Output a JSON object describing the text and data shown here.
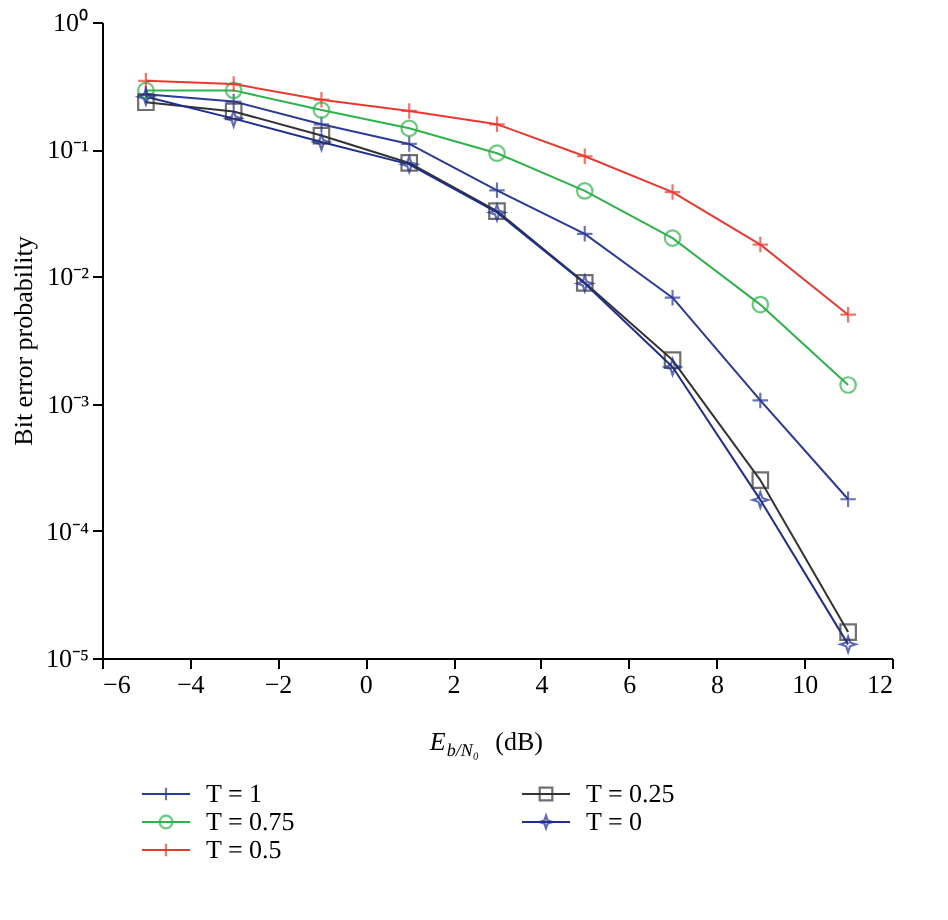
{
  "chart_data": {
    "type": "line",
    "xlabel": "E$_{b/N₀}$ (dB)",
    "ylabel": "Bit error probability",
    "x": [
      -5,
      -3,
      -1,
      1,
      3,
      5,
      7,
      9,
      11
    ],
    "series": [
      {
        "name": "T = 1",
        "color": "#2b3a96",
        "marker": "cross",
        "values": [
          0.27,
          0.237,
          0.157,
          0.11,
          0.0475,
          0.0216,
          0.0068,
          0.00106,
          0.000177
        ]
      },
      {
        "name": "T = 0.75",
        "color": "#2db34a",
        "marker": "circle",
        "values": [
          0.29,
          0.29,
          0.203,
          0.146,
          0.093,
          0.047,
          0.02,
          0.006,
          0.0014
        ]
      },
      {
        "name": "T = 0.5",
        "color": "#e8392f",
        "marker": "cross",
        "values": [
          0.345,
          0.325,
          0.245,
          0.2,
          0.157,
          0.088,
          0.046,
          0.0178,
          0.005
        ]
      },
      {
        "name": "T = 0.25",
        "color": "#333333",
        "marker": "square",
        "values": [
          0.234,
          0.198,
          0.128,
          0.078,
          0.0326,
          0.0089,
          0.0022,
          0.00025,
          1.6e-05
        ]
      },
      {
        "name": "T = 0",
        "color": "#1f2f8f",
        "marker": "star",
        "values": [
          0.258,
          0.174,
          0.114,
          0.076,
          0.0318,
          0.0088,
          0.00194,
          0.000175,
          1.28e-05
        ]
      }
    ],
    "xlim": [
      -6,
      12
    ],
    "xticks": [
      -6,
      -4,
      -2,
      0,
      2,
      4,
      6,
      8,
      10,
      12
    ],
    "ylim": [
      1e-05,
      1
    ],
    "yticks": [
      {
        "value": 1e-05,
        "label": "10⁻⁵"
      },
      {
        "value": 0.0001,
        "label": "10⁻⁴"
      },
      {
        "value": 0.001,
        "label": "10⁻³"
      },
      {
        "value": 0.01,
        "label": "10⁻²"
      },
      {
        "value": 0.1,
        "label": "10⁻¹"
      },
      {
        "value": 1,
        "label": "10⁰"
      }
    ],
    "log": "y",
    "grid": false,
    "legend": "bottom",
    "line_style": "solid"
  }
}
